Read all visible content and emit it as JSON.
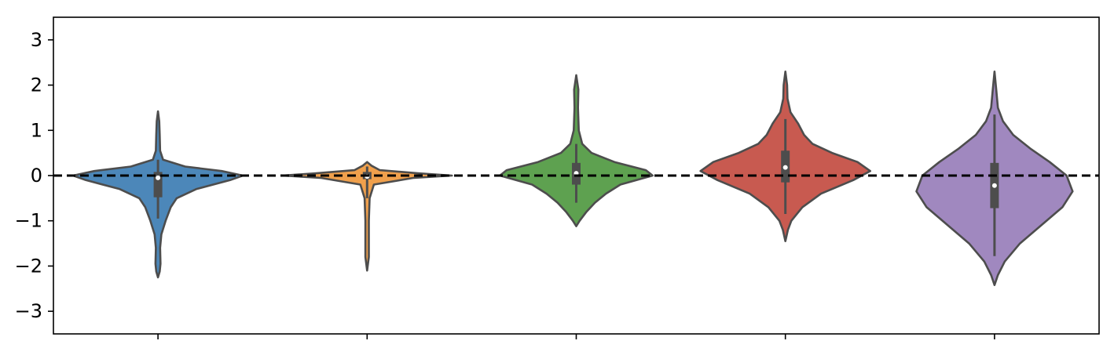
{
  "chart_data": {
    "type": "violin",
    "title": "",
    "xlabel": "",
    "ylabel": "",
    "ylim": [
      -3.5,
      3.5
    ],
    "yticks": [
      3,
      2,
      1,
      0,
      -1,
      -2,
      -3
    ],
    "ytick_labels": [
      "3",
      "2",
      "1",
      "0",
      "−1",
      "−2",
      "−3"
    ],
    "x_tick_labels": [
      "",
      "",
      "",
      "",
      ""
    ],
    "reference_line": {
      "y": 0,
      "style": "dashed",
      "color": "#000000"
    },
    "grid": false,
    "legend": "none",
    "series": [
      {
        "color": "#4c87b9",
        "median": -0.05,
        "q1": -0.48,
        "q3": 0.08,
        "whisker_low": -0.95,
        "whisker_high": 0.35,
        "min": -2.25,
        "max": 1.42,
        "profile": [
          [
            -2.25,
            0.0
          ],
          [
            -2.12,
            0.02
          ],
          [
            -1.95,
            0.03
          ],
          [
            -1.6,
            0.025
          ],
          [
            -1.3,
            0.04
          ],
          [
            -1.0,
            0.09
          ],
          [
            -0.7,
            0.15
          ],
          [
            -0.5,
            0.22
          ],
          [
            -0.3,
            0.45
          ],
          [
            -0.1,
            0.85
          ],
          [
            0.0,
            1.0
          ],
          [
            0.1,
            0.75
          ],
          [
            0.2,
            0.32
          ],
          [
            0.35,
            0.06
          ],
          [
            0.55,
            0.025
          ],
          [
            0.9,
            0.02
          ],
          [
            1.2,
            0.015
          ],
          [
            1.42,
            0.0
          ]
        ]
      },
      {
        "color": "#f0a04c",
        "median": -0.02,
        "q1": -0.08,
        "q3": 0.08,
        "whisker_low": -0.5,
        "whisker_high": 0.2,
        "min": -2.1,
        "max": 0.3,
        "profile": [
          [
            -2.1,
            0.0
          ],
          [
            -1.8,
            0.02
          ],
          [
            -1.0,
            0.02
          ],
          [
            -0.5,
            0.03
          ],
          [
            -0.2,
            0.08
          ],
          [
            -0.05,
            0.55
          ],
          [
            0.0,
            1.0
          ],
          [
            0.05,
            0.6
          ],
          [
            0.12,
            0.15
          ],
          [
            0.22,
            0.05
          ],
          [
            0.3,
            0.0
          ]
        ]
      },
      {
        "color": "#5ea150",
        "median": 0.05,
        "q1": -0.2,
        "q3": 0.28,
        "whisker_low": -0.6,
        "whisker_high": 0.7,
        "min": -1.12,
        "max": 2.22,
        "profile": [
          [
            -1.12,
            0.0
          ],
          [
            -1.0,
            0.04
          ],
          [
            -0.8,
            0.12
          ],
          [
            -0.6,
            0.22
          ],
          [
            -0.4,
            0.35
          ],
          [
            -0.2,
            0.52
          ],
          [
            0.0,
            0.9
          ],
          [
            0.12,
            0.82
          ],
          [
            0.3,
            0.45
          ],
          [
            0.5,
            0.18
          ],
          [
            0.7,
            0.07
          ],
          [
            1.0,
            0.03
          ],
          [
            1.5,
            0.02
          ],
          [
            1.9,
            0.025
          ],
          [
            2.22,
            0.0
          ]
        ]
      },
      {
        "color": "#c85a50",
        "median": 0.18,
        "q1": -0.15,
        "q3": 0.55,
        "whisker_low": -0.85,
        "whisker_high": 1.25,
        "min": -1.45,
        "max": 2.3,
        "profile": [
          [
            -1.45,
            0.0
          ],
          [
            -1.2,
            0.03
          ],
          [
            -1.0,
            0.07
          ],
          [
            -0.7,
            0.2
          ],
          [
            -0.4,
            0.42
          ],
          [
            -0.1,
            0.8
          ],
          [
            0.1,
            1.0
          ],
          [
            0.3,
            0.85
          ],
          [
            0.5,
            0.55
          ],
          [
            0.7,
            0.32
          ],
          [
            0.9,
            0.22
          ],
          [
            1.15,
            0.15
          ],
          [
            1.4,
            0.06
          ],
          [
            1.7,
            0.025
          ],
          [
            2.0,
            0.02
          ],
          [
            2.3,
            0.0
          ]
        ]
      },
      {
        "color": "#a088bf",
        "median": -0.22,
        "q1": -0.72,
        "q3": 0.28,
        "whisker_low": -1.78,
        "whisker_high": 1.35,
        "min": -2.42,
        "max": 2.3,
        "profile": [
          [
            -2.42,
            0.0
          ],
          [
            -2.2,
            0.04
          ],
          [
            -1.9,
            0.12
          ],
          [
            -1.5,
            0.3
          ],
          [
            -1.1,
            0.55
          ],
          [
            -0.7,
            0.8
          ],
          [
            -0.35,
            0.92
          ],
          [
            0.0,
            0.85
          ],
          [
            0.3,
            0.65
          ],
          [
            0.6,
            0.42
          ],
          [
            0.9,
            0.22
          ],
          [
            1.2,
            0.1
          ],
          [
            1.5,
            0.04
          ],
          [
            1.9,
            0.02
          ],
          [
            2.3,
            0.0
          ]
        ]
      }
    ]
  }
}
